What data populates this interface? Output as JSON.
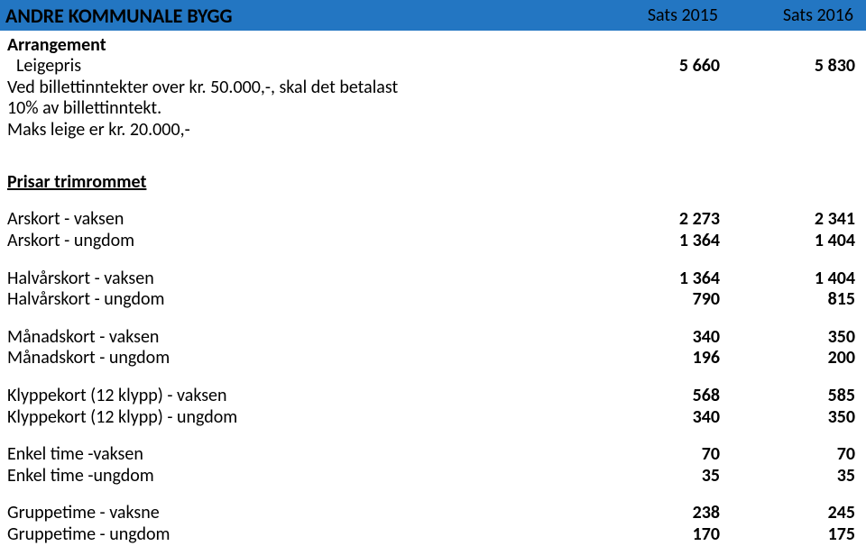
{
  "header": {
    "title": "ANDRE KOMMUNALE BYGG",
    "col1": "Sats 2015",
    "col2": "Sats 2016",
    "bg_color": "#2376c2"
  },
  "arrangement": {
    "heading": "Arrangement",
    "lines": [
      {
        "label": "Leigepris",
        "v1": "5 660",
        "v2": "5 830",
        "indent": true
      },
      {
        "label": "Ved billettinntekter over kr. 50.000,-, skal det betalast",
        "v1": "",
        "v2": ""
      },
      {
        "label": "10% av billettinntekt.",
        "v1": "",
        "v2": ""
      },
      {
        "label": "Maks leige er kr. 20.000,-",
        "v1": "",
        "v2": ""
      }
    ]
  },
  "prisar": {
    "heading": "Prisar trimrommet",
    "groups": [
      [
        {
          "label": "Arskort - vaksen",
          "v1": "2 273",
          "v2": "2 341"
        },
        {
          "label": "Arskort - ungdom",
          "v1": "1 364",
          "v2": "1 404"
        }
      ],
      [
        {
          "label": "Halvårskort - vaksen",
          "v1": "1 364",
          "v2": "1 404"
        },
        {
          "label": "Halvårskort - ungdom",
          "v1": "790",
          "v2": "815"
        }
      ],
      [
        {
          "label": "Månadskort - vaksen",
          "v1": "340",
          "v2": "350"
        },
        {
          "label": "Månadskort - ungdom",
          "v1": "196",
          "v2": "200"
        }
      ],
      [
        {
          "label": "Klyppekort (12 klypp) - vaksen",
          "v1": "568",
          "v2": "585"
        },
        {
          "label": "Klyppekort (12 klypp) - ungdom",
          "v1": "340",
          "v2": "350"
        }
      ],
      [
        {
          "label": "Enkel time -vaksen",
          "v1": "70",
          "v2": "70"
        },
        {
          "label": "Enkel time -ungdom",
          "v1": "35",
          "v2": "35"
        }
      ],
      [
        {
          "label": "Gruppetime - vaksne",
          "v1": "238",
          "v2": "245"
        },
        {
          "label": "Gruppetime - ungdom",
          "v1": "170",
          "v2": "175"
        }
      ]
    ]
  }
}
